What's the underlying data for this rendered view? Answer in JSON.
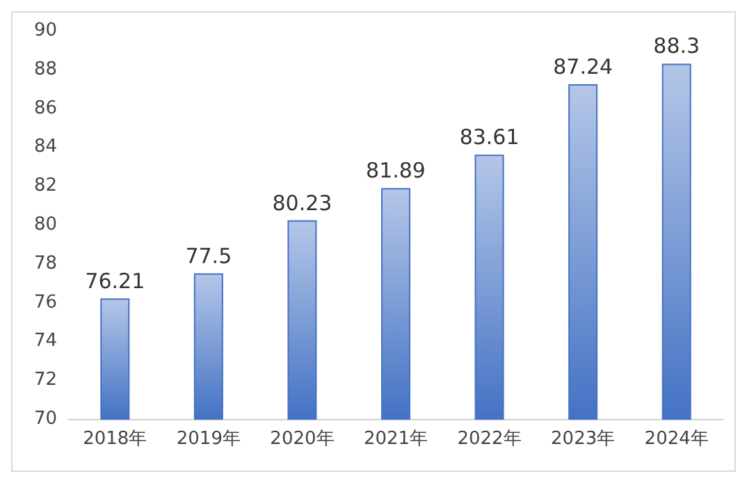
{
  "chart_data": {
    "type": "bar",
    "categories": [
      "2018年",
      "2019年",
      "2020年",
      "2021年",
      "2022年",
      "2023年",
      "2024年"
    ],
    "values": [
      76.21,
      77.5,
      80.23,
      81.89,
      83.61,
      87.24,
      88.3
    ],
    "color": "#4472c4",
    "ylim": [
      70,
      90
    ],
    "yticks": [
      70,
      72,
      74,
      76,
      78,
      80,
      82,
      84,
      86,
      88,
      90
    ],
    "grid": false,
    "data_labels": true
  }
}
